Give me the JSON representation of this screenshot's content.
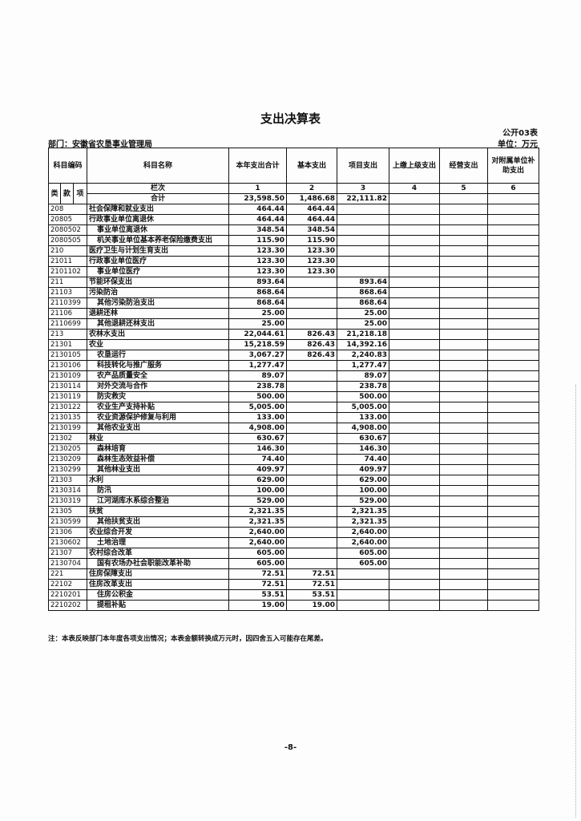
{
  "title": "支出决算表",
  "form_no": "公开03表",
  "department": "部门：安徽省农垦事业管理局",
  "unit": "单位：万元",
  "headers": {
    "code": "科目编码",
    "name": "科目名称",
    "c1": "本年支出合计",
    "c2": "基本支出",
    "c3": "项目支出",
    "c4": "上缴上级支出",
    "c5": "经营支出",
    "c6": "对附属单位补助支出",
    "lei": "类",
    "kuan": "款",
    "xiang": "项",
    "lanci": "栏次",
    "n1": "1",
    "n2": "2",
    "n3": "3",
    "n4": "4",
    "n5": "5",
    "n6": "6",
    "total_label": "合计"
  },
  "total": {
    "c1": "23,598.50",
    "c2": "1,486.68",
    "c3": "22,111.82"
  },
  "rows": [
    {
      "code": "208",
      "name": "社会保障和就业支出",
      "c1": "464.44",
      "c2": "464.44",
      "c3": ""
    },
    {
      "code": "20805",
      "name": "行政事业单位离退休",
      "c1": "464.44",
      "c2": "464.44",
      "c3": ""
    },
    {
      "code": "2080502",
      "name": "事业单位离退休",
      "c1": "348.54",
      "c2": "348.54",
      "c3": ""
    },
    {
      "code": "2080505",
      "name": "机关事业单位基本养老保险缴费支出",
      "c1": "115.90",
      "c2": "115.90",
      "c3": ""
    },
    {
      "code": "210",
      "name": "医疗卫生与计划生育支出",
      "c1": "123.30",
      "c2": "123.30",
      "c3": ""
    },
    {
      "code": "21011",
      "name": "行政事业单位医疗",
      "c1": "123.30",
      "c2": "123.30",
      "c3": ""
    },
    {
      "code": "2101102",
      "name": "事业单位医疗",
      "c1": "123.30",
      "c2": "123.30",
      "c3": ""
    },
    {
      "code": "211",
      "name": "节能环保支出",
      "c1": "893.64",
      "c2": "",
      "c3": "893.64"
    },
    {
      "code": "21103",
      "name": "污染防治",
      "c1": "868.64",
      "c2": "",
      "c3": "868.64"
    },
    {
      "code": "2110399",
      "name": "其他污染防治支出",
      "c1": "868.64",
      "c2": "",
      "c3": "868.64"
    },
    {
      "code": "21106",
      "name": "退耕还林",
      "c1": "25.00",
      "c2": "",
      "c3": "25.00"
    },
    {
      "code": "2110699",
      "name": "其他退耕还林支出",
      "c1": "25.00",
      "c2": "",
      "c3": "25.00"
    },
    {
      "code": "213",
      "name": "农林水支出",
      "c1": "22,044.61",
      "c2": "826.43",
      "c3": "21,218.18"
    },
    {
      "code": "21301",
      "name": "农业",
      "c1": "15,218.59",
      "c2": "826.43",
      "c3": "14,392.16"
    },
    {
      "code": "2130105",
      "name": "农垦运行",
      "c1": "3,067.27",
      "c2": "826.43",
      "c3": "2,240.83"
    },
    {
      "code": "2130106",
      "name": "科技转化与推广服务",
      "c1": "1,277.47",
      "c2": "",
      "c3": "1,277.47"
    },
    {
      "code": "2130109",
      "name": "农产品质量安全",
      "c1": "89.07",
      "c2": "",
      "c3": "89.07"
    },
    {
      "code": "2130114",
      "name": "对外交流与合作",
      "c1": "238.78",
      "c2": "",
      "c3": "238.78"
    },
    {
      "code": "2130119",
      "name": "防灾救灾",
      "c1": "500.00",
      "c2": "",
      "c3": "500.00"
    },
    {
      "code": "2130122",
      "name": "农业生产支持补贴",
      "c1": "5,005.00",
      "c2": "",
      "c3": "5,005.00"
    },
    {
      "code": "2130135",
      "name": "农业资源保护修复与利用",
      "c1": "133.00",
      "c2": "",
      "c3": "133.00"
    },
    {
      "code": "2130199",
      "name": "其他农业支出",
      "c1": "4,908.00",
      "c2": "",
      "c3": "4,908.00"
    },
    {
      "code": "21302",
      "name": "林业",
      "c1": "630.67",
      "c2": "",
      "c3": "630.67"
    },
    {
      "code": "2130205",
      "name": "森林培育",
      "c1": "146.30",
      "c2": "",
      "c3": "146.30"
    },
    {
      "code": "2130209",
      "name": "森林生态效益补偿",
      "c1": "74.40",
      "c2": "",
      "c3": "74.40"
    },
    {
      "code": "2130299",
      "name": "其他林业支出",
      "c1": "409.97",
      "c2": "",
      "c3": "409.97"
    },
    {
      "code": "21303",
      "name": "水利",
      "c1": "629.00",
      "c2": "",
      "c3": "629.00"
    },
    {
      "code": "2130314",
      "name": "防汛",
      "c1": "100.00",
      "c2": "",
      "c3": "100.00"
    },
    {
      "code": "2130319",
      "name": "江河湖库水系综合整治",
      "c1": "529.00",
      "c2": "",
      "c3": "529.00"
    },
    {
      "code": "21305",
      "name": "扶贫",
      "c1": "2,321.35",
      "c2": "",
      "c3": "2,321.35"
    },
    {
      "code": "2130599",
      "name": "其他扶贫支出",
      "c1": "2,321.35",
      "c2": "",
      "c3": "2,321.35"
    },
    {
      "code": "21306",
      "name": "农业综合开发",
      "c1": "2,640.00",
      "c2": "",
      "c3": "2,640.00"
    },
    {
      "code": "2130602",
      "name": "土地治理",
      "c1": "2,640.00",
      "c2": "",
      "c3": "2,640.00"
    },
    {
      "code": "21307",
      "name": "农村综合改革",
      "c1": "605.00",
      "c2": "",
      "c3": "605.00"
    },
    {
      "code": "2130704",
      "name": "国有农场办社会职能改革补助",
      "c1": "605.00",
      "c2": "",
      "c3": "605.00"
    },
    {
      "code": "221",
      "name": "住房保障支出",
      "c1": "72.51",
      "c2": "72.51",
      "c3": ""
    },
    {
      "code": "22102",
      "name": "住房改革支出",
      "c1": "72.51",
      "c2": "72.51",
      "c3": ""
    },
    {
      "code": "2210201",
      "name": "住房公积金",
      "c1": "53.51",
      "c2": "53.51",
      "c3": ""
    },
    {
      "code": "2210202",
      "name": "提租补贴",
      "c1": "19.00",
      "c2": "19.00",
      "c3": ""
    }
  ],
  "note": "注：本表反映部门本年度各项支出情况；本表金额转换成万元时，因四舍五入可能存在尾差。",
  "page_number": "-8-"
}
